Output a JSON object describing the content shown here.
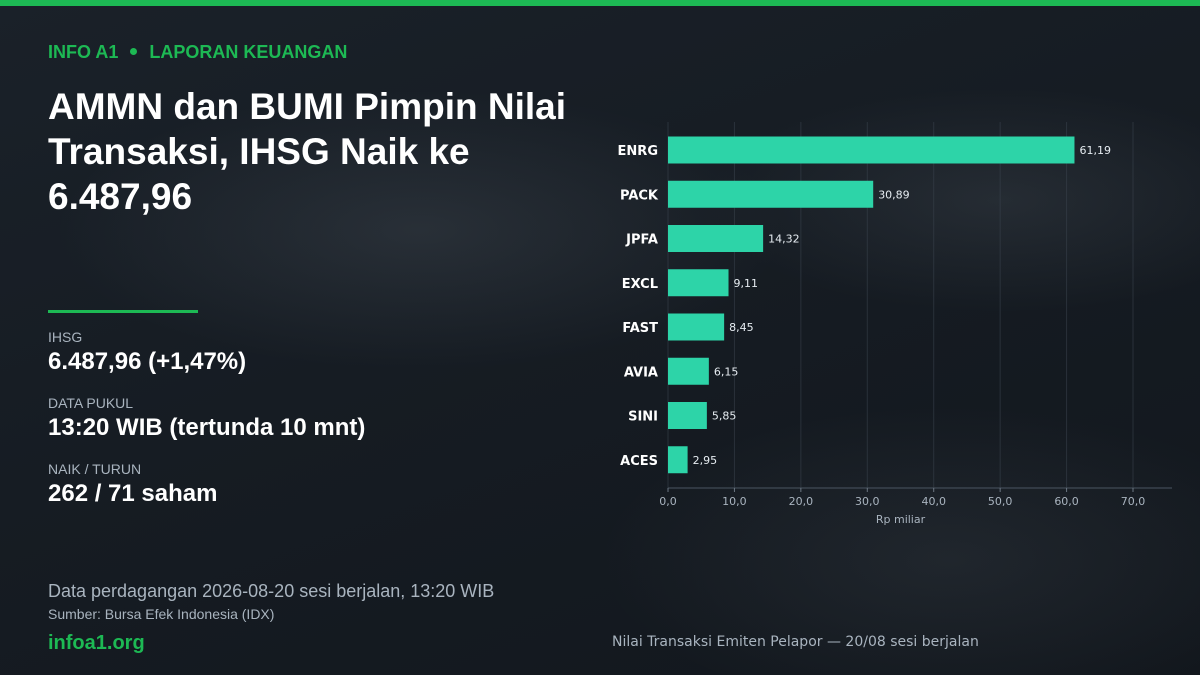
{
  "kicker": {
    "brand": "INFO A1",
    "section": "LAPORAN KEUANGAN"
  },
  "headline": "AMMN dan BUMI Pimpin Nilai Transaksi, IHSG Naik ke 6.487,96",
  "stats": {
    "ihsg_label": "IHSG",
    "ihsg_value": "6.487,96  (+1,47%)",
    "time_label": "DATA PUKUL",
    "time_value": "13:20 WIB (tertunda 10 mnt)",
    "breadth_label": "NAIK / TURUN",
    "breadth_value": "262 / 71 saham"
  },
  "footnote": "Data perdagangan 2026-08-20 sesi berjalan, 13:20 WIB",
  "source": "Sumber: Bursa Efek Indonesia (IDX)",
  "site": "infoa1.org",
  "caption": "Nilai Transaksi Emiten Pelapor — 20/08 sesi berjalan",
  "colors": {
    "accent": "#1db954",
    "bar": "#2dd4a8",
    "background": "#151b22"
  },
  "chart_data": {
    "type": "bar",
    "orientation": "horizontal",
    "categories": [
      "ENRG",
      "PACK",
      "JPFA",
      "EXCL",
      "FAST",
      "AVIA",
      "SINI",
      "ACES"
    ],
    "values": [
      61.19,
      30.89,
      14.32,
      9.11,
      8.45,
      6.15,
      5.85,
      2.95
    ],
    "value_labels": [
      "61,19",
      "30,89",
      "14,32",
      "9,11",
      "8,45",
      "6,15",
      "5,85",
      "2,95"
    ],
    "xlabel": "Rp miliar",
    "xlim": [
      0,
      70
    ],
    "ticks": [
      0,
      10,
      20,
      30,
      40,
      50,
      60,
      70
    ],
    "tick_labels": [
      "0,0",
      "10,0",
      "20,0",
      "30,0",
      "40,0",
      "50,0",
      "60,0",
      "70,0"
    ],
    "grid": true
  }
}
